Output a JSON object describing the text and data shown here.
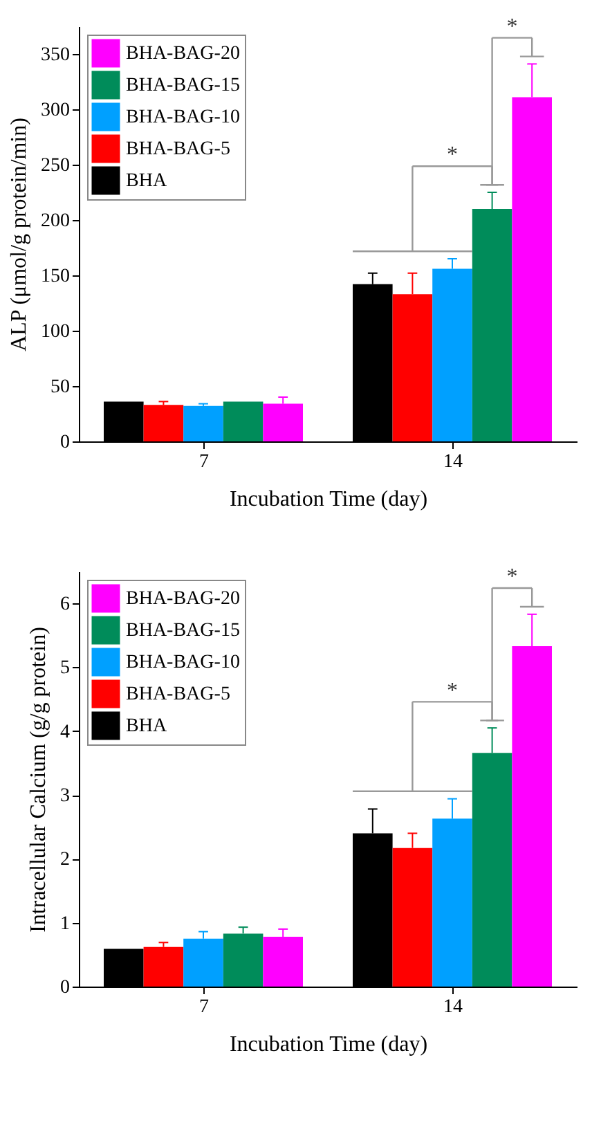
{
  "chart_data": [
    {
      "type": "bar",
      "categories": [
        "7",
        "14"
      ],
      "xlabel": "Incubation Time (day)",
      "ylabel": "ALP (μmol/g protein/min)",
      "ylim": [
        0,
        375
      ],
      "yticks": [
        0,
        50,
        100,
        150,
        200,
        250,
        300,
        350
      ],
      "grid": false,
      "legend": "top left",
      "series": [
        {
          "name": "BHA",
          "color": "#000000",
          "values": [
            36,
            142
          ],
          "errors": [
            null,
            [
              142,
              152
            ]
          ]
        },
        {
          "name": "BHA-BAG-5",
          "color": "#ff0000",
          "values": [
            33,
            133
          ],
          "errors": [
            [
              33,
              36
            ],
            [
              133,
              152
            ]
          ]
        },
        {
          "name": "BHA-BAG-10",
          "color": "#00a0ff",
          "values": [
            32,
            156
          ],
          "errors": [
            [
              32,
              34
            ],
            [
              156,
              165
            ]
          ]
        },
        {
          "name": "BHA-BAG-15",
          "color": "#008c5a",
          "values": [
            36,
            210
          ],
          "errors": [
            null,
            [
              210,
              225
            ]
          ]
        },
        {
          "name": "BHA-BAG-20",
          "color": "#ff00ff",
          "values": [
            34,
            311
          ],
          "errors": [
            [
              34,
              40
            ],
            [
              311,
              341
            ]
          ]
        }
      ],
      "annotations": [
        "*",
        "*"
      ]
    },
    {
      "type": "bar",
      "categories": [
        "7",
        "14"
      ],
      "xlabel": "Incubation Time (day)",
      "ylabel": "Intracellular Calcium (g/g protein)",
      "ylim": [
        0,
        6.5
      ],
      "yticks": [
        0,
        1,
        2,
        3,
        4,
        5,
        6
      ],
      "grid": false,
      "legend": "top left",
      "series": [
        {
          "name": "BHA",
          "color": "#000000",
          "values": [
            0.59,
            2.4
          ],
          "errors": [
            null,
            [
              2.4,
              2.78
            ]
          ]
        },
        {
          "name": "BHA-BAG-5",
          "color": "#ff0000",
          "values": [
            0.62,
            2.17
          ],
          "errors": [
            [
              0.62,
              0.69
            ],
            [
              2.17,
              2.4
            ]
          ]
        },
        {
          "name": "BHA-BAG-10",
          "color": "#00a0ff",
          "values": [
            0.75,
            2.63
          ],
          "errors": [
            [
              0.75,
              0.86
            ],
            [
              2.63,
              2.94
            ]
          ]
        },
        {
          "name": "BHA-BAG-15",
          "color": "#008c5a",
          "values": [
            0.83,
            3.66
          ],
          "errors": [
            [
              0.83,
              0.93
            ],
            [
              3.66,
              4.05
            ]
          ]
        },
        {
          "name": "BHA-BAG-20",
          "color": "#ff00ff",
          "values": [
            0.78,
            5.33
          ],
          "errors": [
            [
              0.78,
              0.9
            ],
            [
              5.33,
              5.83
            ]
          ]
        }
      ],
      "annotations": [
        "*",
        "*"
      ]
    }
  ]
}
